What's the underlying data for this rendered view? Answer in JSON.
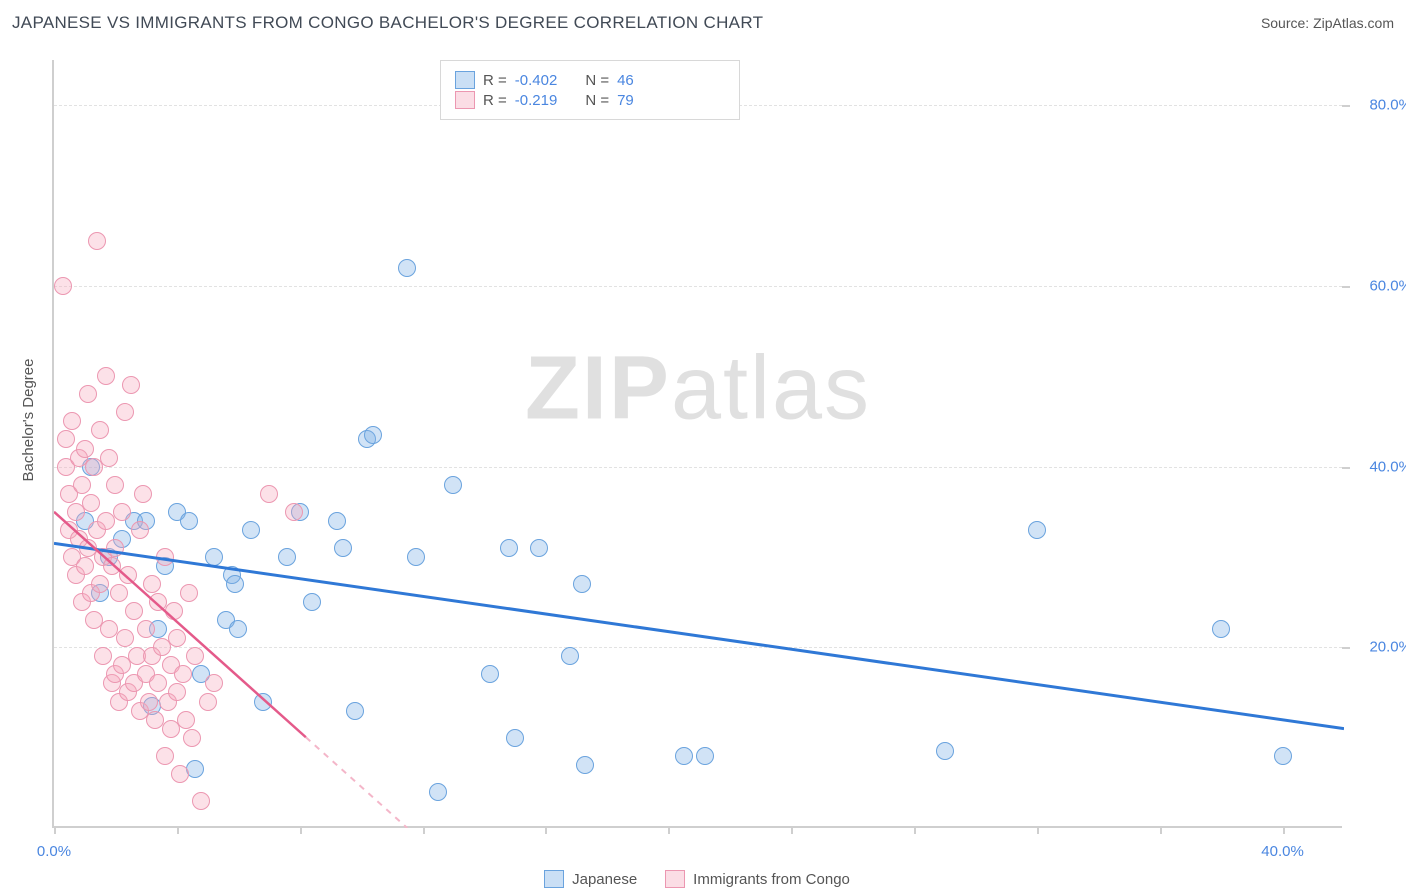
{
  "title": "JAPANESE VS IMMIGRANTS FROM CONGO BACHELOR'S DEGREE CORRELATION CHART",
  "source_label": "Source: ZipAtlas.com",
  "ylabel": "Bachelor's Degree",
  "watermark": {
    "bold": "ZIP",
    "rest": "atlas"
  },
  "chart": {
    "type": "scatter",
    "background_color": "#ffffff",
    "grid_color": "#e2e2e2",
    "axis_color": "#cfcfcf",
    "tick_label_color": "#4a86e0",
    "xlim": [
      0,
      42
    ],
    "ylim": [
      0,
      85
    ],
    "yticks": [
      20,
      40,
      60,
      80
    ],
    "ytick_labels": [
      "20.0%",
      "40.0%",
      "60.0%",
      "80.0%"
    ],
    "xticks": [
      0,
      20,
      40
    ],
    "xtick_labels": [
      "0.0%",
      "",
      "40.0%"
    ],
    "xtick_minor": [
      4,
      8,
      12,
      16,
      24,
      28,
      32,
      36
    ],
    "series": [
      {
        "name": "Japanese",
        "legend_label": "Japanese",
        "marker_color_fill": "rgba(122,174,230,0.35)",
        "marker_color_stroke": "#6aa3de",
        "trend_color": "#2f78d6",
        "trend_dash_color": "#9ec2ea",
        "R": "-0.402",
        "N": "46",
        "trend": {
          "x1": 0,
          "y1": 31.5,
          "x2": 42,
          "y2": 11.0
        },
        "points": [
          [
            1.0,
            34
          ],
          [
            1.2,
            40
          ],
          [
            1.5,
            26
          ],
          [
            1.8,
            30
          ],
          [
            2.2,
            32
          ],
          [
            2.6,
            34
          ],
          [
            3.0,
            34
          ],
          [
            3.2,
            13.5
          ],
          [
            3.4,
            22
          ],
          [
            3.6,
            29
          ],
          [
            4.0,
            35
          ],
          [
            4.4,
            34
          ],
          [
            4.6,
            6.5
          ],
          [
            4.8,
            17
          ],
          [
            5.2,
            30
          ],
          [
            5.6,
            23
          ],
          [
            5.8,
            28
          ],
          [
            5.9,
            27
          ],
          [
            6.0,
            22
          ],
          [
            6.4,
            33
          ],
          [
            6.8,
            14
          ],
          [
            7.6,
            30
          ],
          [
            8.0,
            35
          ],
          [
            8.4,
            25
          ],
          [
            9.2,
            34
          ],
          [
            9.4,
            31
          ],
          [
            9.8,
            13
          ],
          [
            10.2,
            43
          ],
          [
            10.4,
            43.5
          ],
          [
            11.5,
            62
          ],
          [
            11.8,
            30
          ],
          [
            12.5,
            4
          ],
          [
            13.0,
            38
          ],
          [
            14.2,
            17
          ],
          [
            14.8,
            31
          ],
          [
            15.0,
            10
          ],
          [
            15.8,
            31
          ],
          [
            16.8,
            19
          ],
          [
            17.2,
            27
          ],
          [
            17.3,
            7
          ],
          [
            20.5,
            8
          ],
          [
            21.2,
            8
          ],
          [
            29.0,
            8.5
          ],
          [
            32.0,
            33
          ],
          [
            38.0,
            22
          ],
          [
            40.0,
            8
          ]
        ]
      },
      {
        "name": "Immigrants from Congo",
        "legend_label": "Immigrants from Congo",
        "marker_color_fill": "rgba(245,170,190,0.35)",
        "marker_color_stroke": "#ec97b1",
        "trend_color": "#e45a8a",
        "trend_dash_color": "#f4b6c9",
        "R": "-0.219",
        "N": "79",
        "trend": {
          "x1": 0,
          "y1": 35.0,
          "x2": 11.5,
          "y2": 0
        },
        "points": [
          [
            0.3,
            60
          ],
          [
            0.4,
            40
          ],
          [
            0.4,
            43
          ],
          [
            0.5,
            37
          ],
          [
            0.5,
            33
          ],
          [
            0.6,
            30
          ],
          [
            0.6,
            45
          ],
          [
            0.7,
            28
          ],
          [
            0.7,
            35
          ],
          [
            0.8,
            41
          ],
          [
            0.8,
            32
          ],
          [
            0.9,
            25
          ],
          [
            0.9,
            38
          ],
          [
            1.0,
            42
          ],
          [
            1.0,
            29
          ],
          [
            1.1,
            48
          ],
          [
            1.1,
            31
          ],
          [
            1.2,
            26
          ],
          [
            1.2,
            36
          ],
          [
            1.3,
            40
          ],
          [
            1.3,
            23
          ],
          [
            1.4,
            65
          ],
          [
            1.4,
            33
          ],
          [
            1.5,
            27
          ],
          [
            1.5,
            44
          ],
          [
            1.6,
            19
          ],
          [
            1.6,
            30
          ],
          [
            1.7,
            50
          ],
          [
            1.7,
            34
          ],
          [
            1.8,
            22
          ],
          [
            1.8,
            41
          ],
          [
            1.9,
            16
          ],
          [
            1.9,
            29
          ],
          [
            2.0,
            38
          ],
          [
            2.0,
            17
          ],
          [
            2.0,
            31
          ],
          [
            2.1,
            14
          ],
          [
            2.1,
            26
          ],
          [
            2.2,
            18
          ],
          [
            2.2,
            35
          ],
          [
            2.3,
            46
          ],
          [
            2.3,
            21
          ],
          [
            2.4,
            15
          ],
          [
            2.4,
            28
          ],
          [
            2.5,
            49
          ],
          [
            2.6,
            16
          ],
          [
            2.6,
            24
          ],
          [
            2.7,
            19
          ],
          [
            2.8,
            33
          ],
          [
            2.8,
            13
          ],
          [
            2.9,
            37
          ],
          [
            3.0,
            22
          ],
          [
            3.0,
            17
          ],
          [
            3.1,
            14
          ],
          [
            3.2,
            27
          ],
          [
            3.2,
            19
          ],
          [
            3.3,
            12
          ],
          [
            3.4,
            25
          ],
          [
            3.4,
            16
          ],
          [
            3.5,
            20
          ],
          [
            3.6,
            8
          ],
          [
            3.6,
            30
          ],
          [
            3.7,
            14
          ],
          [
            3.8,
            18
          ],
          [
            3.8,
            11
          ],
          [
            3.9,
            24
          ],
          [
            4.0,
            15
          ],
          [
            4.0,
            21
          ],
          [
            4.1,
            6
          ],
          [
            4.2,
            17
          ],
          [
            4.3,
            12
          ],
          [
            4.4,
            26
          ],
          [
            4.5,
            10
          ],
          [
            4.6,
            19
          ],
          [
            4.8,
            3
          ],
          [
            5.0,
            14
          ],
          [
            5.2,
            16
          ],
          [
            7.0,
            37
          ],
          [
            7.8,
            35
          ]
        ]
      }
    ]
  },
  "legend_top": {
    "R_label": "R =",
    "N_label": "N ="
  }
}
